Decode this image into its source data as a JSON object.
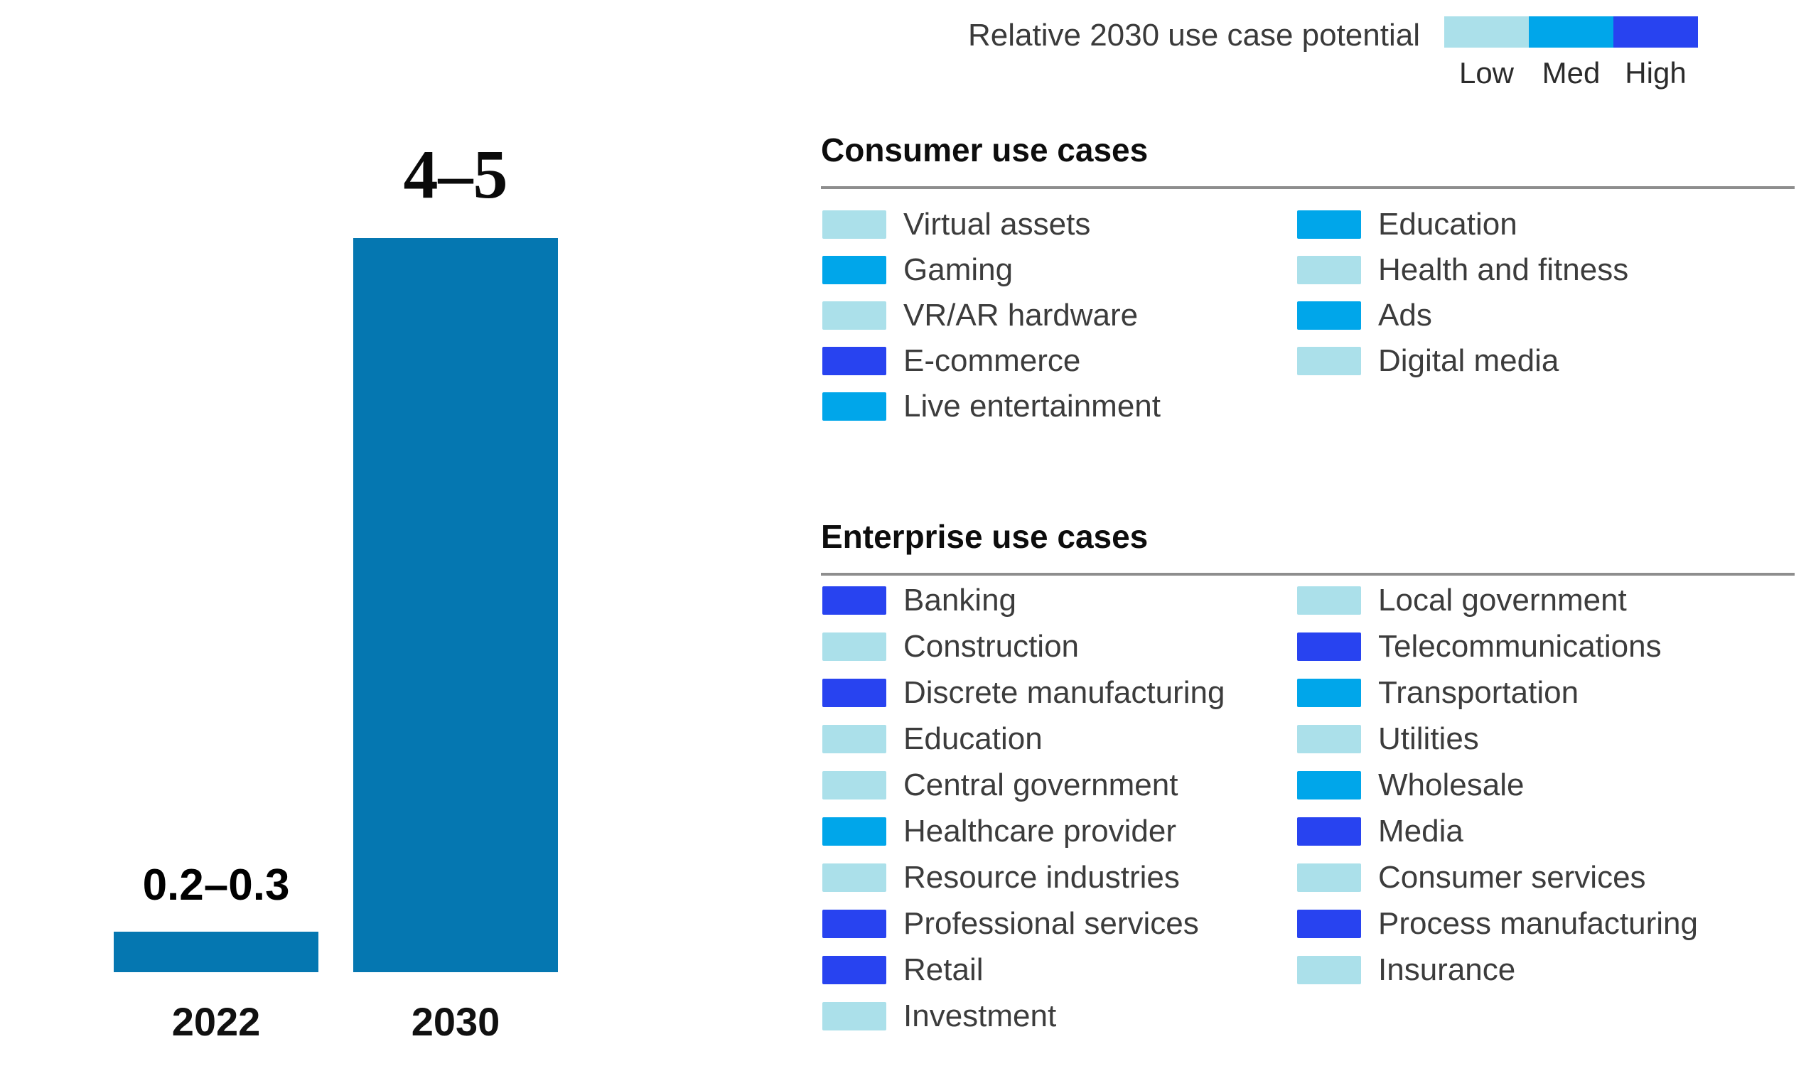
{
  "scale_legend": {
    "title": "Relative 2030 use case potential",
    "levels": [
      {
        "label": "Low",
        "color": "#ABE0EA"
      },
      {
        "label": "Med",
        "color": "#00A6EA"
      },
      {
        "label": "High",
        "color": "#2843F0"
      }
    ]
  },
  "chart_data": {
    "type": "bar",
    "categories": [
      "2022",
      "2030"
    ],
    "values": [
      0.25,
      4.5
    ],
    "value_ranges": [
      [
        0.2,
        0.3
      ],
      [
        4,
        5
      ]
    ],
    "value_labels": [
      "0.2–0.3",
      "4–5"
    ],
    "ylim": [
      0,
      5
    ],
    "bar_color": "#0577B1",
    "xlabel": "",
    "ylabel": "",
    "grid": false,
    "legend_position": "right-panel"
  },
  "sections": [
    {
      "title": "Consumer use cases",
      "columns": [
        {
          "items": [
            {
              "label": "Virtual assets",
              "potential": "Low"
            },
            {
              "label": "Gaming",
              "potential": "Med"
            },
            {
              "label": "VR/AR hardware",
              "potential": "Low"
            },
            {
              "label": "E-commerce",
              "potential": "High"
            },
            {
              "label": "Live entertainment",
              "potential": "Med"
            }
          ]
        },
        {
          "items": [
            {
              "label": "Education",
              "potential": "Med"
            },
            {
              "label": "Health and fitness",
              "potential": "Low"
            },
            {
              "label": "Ads",
              "potential": "Med"
            },
            {
              "label": "Digital media",
              "potential": "Low"
            }
          ]
        }
      ]
    },
    {
      "title": "Enterprise use cases",
      "columns": [
        {
          "items": [
            {
              "label": "Banking",
              "potential": "High"
            },
            {
              "label": "Construction",
              "potential": "Low"
            },
            {
              "label": "Discrete manufacturing",
              "potential": "High"
            },
            {
              "label": "Education",
              "potential": "Low"
            },
            {
              "label": "Central government",
              "potential": "Low"
            },
            {
              "label": "Healthcare provider",
              "potential": "Med"
            },
            {
              "label": "Resource industries",
              "potential": "Low"
            },
            {
              "label": "Professional services",
              "potential": "High"
            },
            {
              "label": "Retail",
              "potential": "High"
            },
            {
              "label": "Investment",
              "potential": "Low"
            }
          ]
        },
        {
          "items": [
            {
              "label": "Local government",
              "potential": "Low"
            },
            {
              "label": "Telecommunications",
              "potential": "High"
            },
            {
              "label": "Transportation",
              "potential": "Med"
            },
            {
              "label": "Utilities",
              "potential": "Low"
            },
            {
              "label": "Wholesale",
              "potential": "Med"
            },
            {
              "label": "Media",
              "potential": "High"
            },
            {
              "label": "Consumer services",
              "potential": "Low"
            },
            {
              "label": "Process manufacturing",
              "potential": "High"
            },
            {
              "label": "Insurance",
              "potential": "Low"
            }
          ]
        }
      ]
    }
  ]
}
